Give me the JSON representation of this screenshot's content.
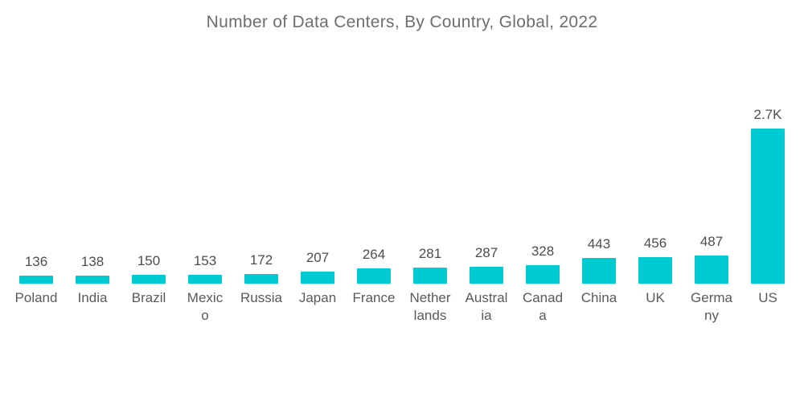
{
  "page": {
    "background_color": "#ffffff"
  },
  "colors": {
    "bar": "#00cad2",
    "title_text": "#6e6e6e",
    "value_text": "#4d4d4d",
    "category_text": "#595959"
  },
  "chart_data": {
    "type": "bar",
    "title": "Number of Data Centers, By Country, Global, 2022",
    "xlabel": "",
    "ylabel": "",
    "categories": [
      "Poland",
      "India",
      "Brazil",
      "Mexico",
      "Russia",
      "Japan",
      "France",
      "Netherlands",
      "Australia",
      "Canada",
      "China",
      "UK",
      "Germany",
      "US"
    ],
    "values": [
      136,
      138,
      150,
      153,
      172,
      207,
      264,
      281,
      287,
      328,
      443,
      456,
      487,
      2700
    ],
    "value_labels": [
      "136",
      "138",
      "150",
      "153",
      "172",
      "207",
      "264",
      "281",
      "287",
      "328",
      "443",
      "456",
      "487",
      "2.7K"
    ],
    "category_label_lines": [
      [
        "Poland"
      ],
      [
        "India"
      ],
      [
        "Brazil"
      ],
      [
        "Mexic",
        "o"
      ],
      [
        "Russia"
      ],
      [
        "Japan"
      ],
      [
        "France"
      ],
      [
        "Nether",
        "lands"
      ],
      [
        "Austral",
        "ia"
      ],
      [
        "Canad",
        "a"
      ],
      [
        "China"
      ],
      [
        "UK"
      ],
      [
        "Germa",
        "ny"
      ],
      [
        "US"
      ]
    ],
    "ylim": [
      0,
      2700
    ],
    "grid": false,
    "legend": "none",
    "axis_lines": "none",
    "bar_color": "#00cad2"
  }
}
